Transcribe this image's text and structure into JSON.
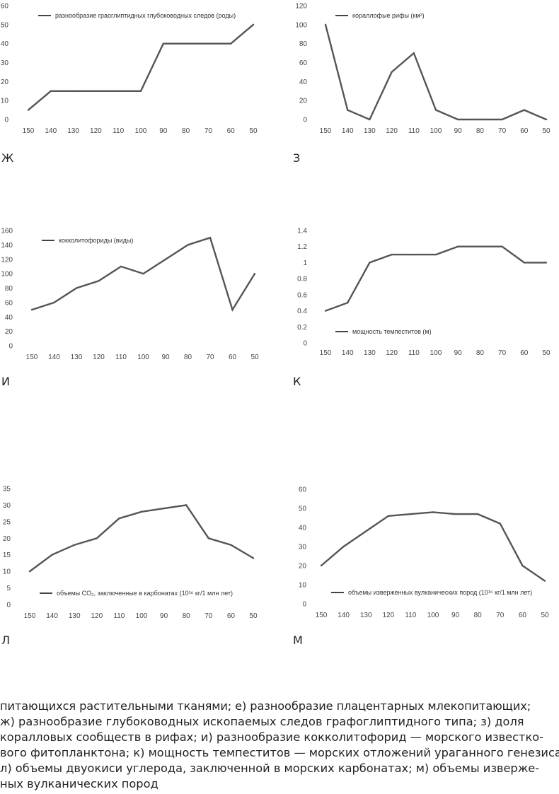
{
  "x_ticks": [
    "150",
    "140",
    "130",
    "120",
    "110",
    "100",
    "90",
    "80",
    "70",
    "60",
    "50"
  ],
  "chart_data": [
    {
      "id": "zh",
      "letter": "Ж",
      "type": "line",
      "x": [
        150,
        140,
        130,
        120,
        110,
        100,
        90,
        80,
        70,
        60,
        50
      ],
      "series": [
        {
          "name": "разнообразие граоглиптидных глубоководных следов (роды)",
          "values": [
            5,
            15,
            15,
            15,
            15,
            15,
            40,
            40,
            40,
            40,
            50
          ]
        }
      ],
      "ylim": [
        0,
        60
      ],
      "yticks": [
        0,
        10,
        20,
        30,
        40,
        50,
        60
      ],
      "legend": "top-left",
      "grid": false
    },
    {
      "id": "z",
      "letter": "З",
      "type": "line",
      "x": [
        150,
        140,
        130,
        120,
        110,
        100,
        90,
        80,
        70,
        60,
        50
      ],
      "series": [
        {
          "name": "кораллофые рифы (км²)",
          "values": [
            100,
            10,
            0,
            50,
            70,
            10,
            0,
            0,
            0,
            10,
            0
          ]
        }
      ],
      "ylim": [
        0,
        120
      ],
      "yticks": [
        0,
        20,
        40,
        60,
        80,
        100,
        120
      ],
      "legend": "top-left",
      "grid": false
    },
    {
      "id": "i",
      "letter": "И",
      "type": "line",
      "x": [
        150,
        140,
        130,
        120,
        110,
        100,
        90,
        80,
        70,
        60,
        50
      ],
      "series": [
        {
          "name": "кокколитофориды (виды)",
          "values": [
            50,
            60,
            80,
            90,
            110,
            100,
            120,
            140,
            150,
            50,
            100
          ]
        }
      ],
      "ylim": [
        0,
        160
      ],
      "yticks": [
        0,
        20,
        40,
        60,
        80,
        100,
        120,
        140,
        160
      ],
      "legend": "top-left",
      "grid": false
    },
    {
      "id": "k",
      "letter": "К",
      "type": "line",
      "x": [
        150,
        140,
        130,
        120,
        110,
        100,
        90,
        80,
        70,
        60,
        50
      ],
      "series": [
        {
          "name": "мощность темпеститов (м)",
          "values": [
            0.4,
            0.5,
            1.0,
            1.1,
            1.1,
            1.1,
            1.2,
            1.2,
            1.2,
            1.0,
            1.0
          ]
        }
      ],
      "ylim": [
        0,
        1.4
      ],
      "yticks": [
        "0",
        "0.2",
        "0.4",
        "0.6",
        "0.8",
        "1",
        "1.2",
        "1.4"
      ],
      "legend": "bottom-left",
      "grid": false
    },
    {
      "id": "l",
      "letter": "Л",
      "type": "line",
      "x": [
        150,
        140,
        130,
        120,
        110,
        100,
        90,
        80,
        70,
        60,
        50
      ],
      "series": [
        {
          "name": "объемы CO₂, заключенные в карбонатах (10¹⁶ кг/1 млн лет)",
          "values": [
            10,
            15,
            18,
            20,
            26,
            28,
            29,
            30,
            20,
            18,
            14
          ]
        }
      ],
      "ylim": [
        0,
        35
      ],
      "yticks": [
        0,
        5,
        10,
        15,
        20,
        25,
        30,
        35
      ],
      "legend": "bottom-left",
      "grid": false
    },
    {
      "id": "m",
      "letter": "М",
      "type": "line",
      "x": [
        150,
        140,
        130,
        120,
        110,
        100,
        90,
        80,
        70,
        60,
        50
      ],
      "series": [
        {
          "name": "объемы изверженных вулканических пород (10¹⁶ кг/1 млн лет)",
          "values": [
            20,
            30,
            38,
            46,
            47,
            48,
            47,
            47,
            42,
            20,
            12
          ]
        }
      ],
      "ylim": [
        0,
        60
      ],
      "yticks": [
        0,
        10,
        20,
        30,
        40,
        50,
        60
      ],
      "legend": "bottom-left",
      "grid": false
    }
  ],
  "caption": {
    "line1": "питающихся растительными тканями; е) разнообразие плацентарных млекопитающих;",
    "line2": "ж) разнообразие глубоководных ископаемых следов графоглиптидного типа; з) доля",
    "line3": "коралловых сообществ в рифах; и) разнообразие кокколитофорид — морского известко-",
    "line4": "вого фитопланктона; к) мощность темпеститов — морских отложений ураганного генезиса;",
    "line5": "л) объемы двуокиси углерода, заключенной в морских карбонатах; м) объемы изверже-",
    "line6": "ных вулканических пород"
  }
}
